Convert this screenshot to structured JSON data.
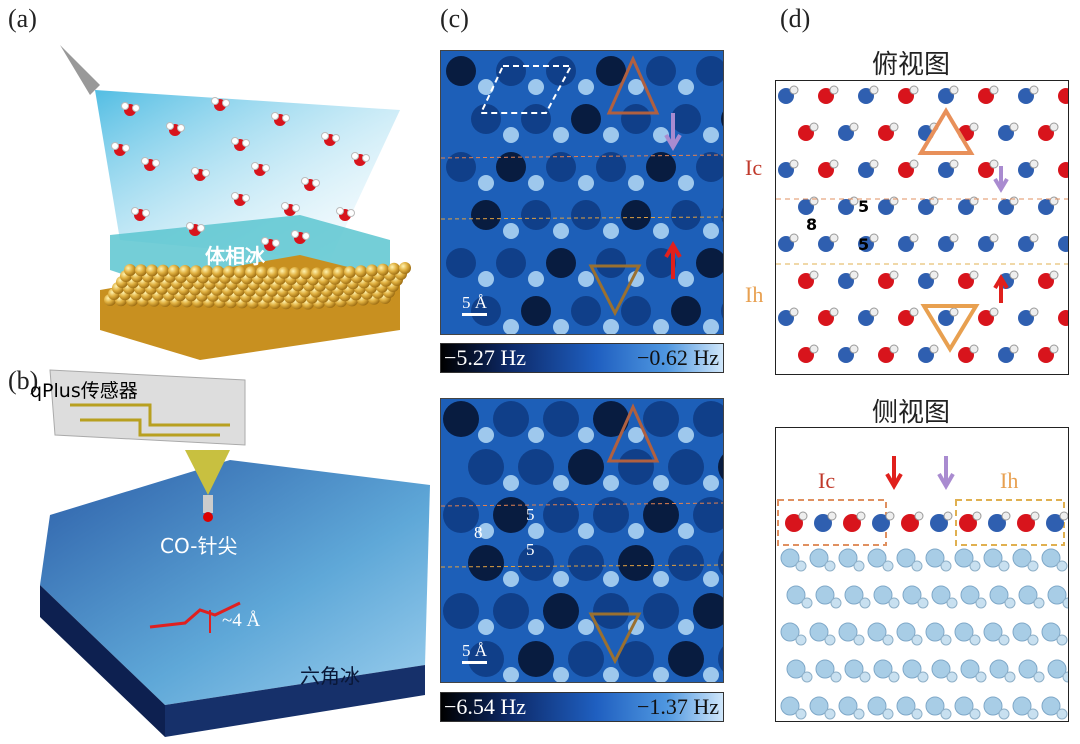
{
  "panels": {
    "a": {
      "label": "(a)",
      "ice_label": "体相冰"
    },
    "b": {
      "label": "(b)",
      "sensor_label": "qPlus传感器",
      "tip_label": "CO-针尖",
      "step_label": "~4 Å",
      "ice_label": "六角冰"
    },
    "c": {
      "label": "(c)",
      "top": {
        "scale_bar": "5 Å",
        "colorbar_min": "−5.27 Hz",
        "colorbar_max": "−0.62 Hz"
      },
      "bottom": {
        "scale_bar": "5 Å",
        "colorbar_min": "−6.54 Hz",
        "colorbar_max": "−1.37 Hz",
        "ring_labels": [
          "8",
          "5",
          "5"
        ]
      }
    },
    "d": {
      "label": "(d)",
      "top_view": {
        "title": "俯视图",
        "phase_ic": "Ic",
        "phase_ih": "Ih",
        "ring_labels": [
          "8",
          "5",
          "5"
        ]
      },
      "side_view": {
        "title": "侧视图",
        "phase_ic": "Ic",
        "phase_ih": "Ih"
      }
    }
  },
  "colors": {
    "oxygen_red": "#d8141c",
    "oxygen_blue": "#2f5fb0",
    "ic_label": "#c0392b",
    "ih_label": "#e8a050",
    "arrow_red": "#e0201c",
    "arrow_purple": "#a98bd0",
    "gold": "#d8a53a",
    "ice": "#5cc6d0"
  }
}
